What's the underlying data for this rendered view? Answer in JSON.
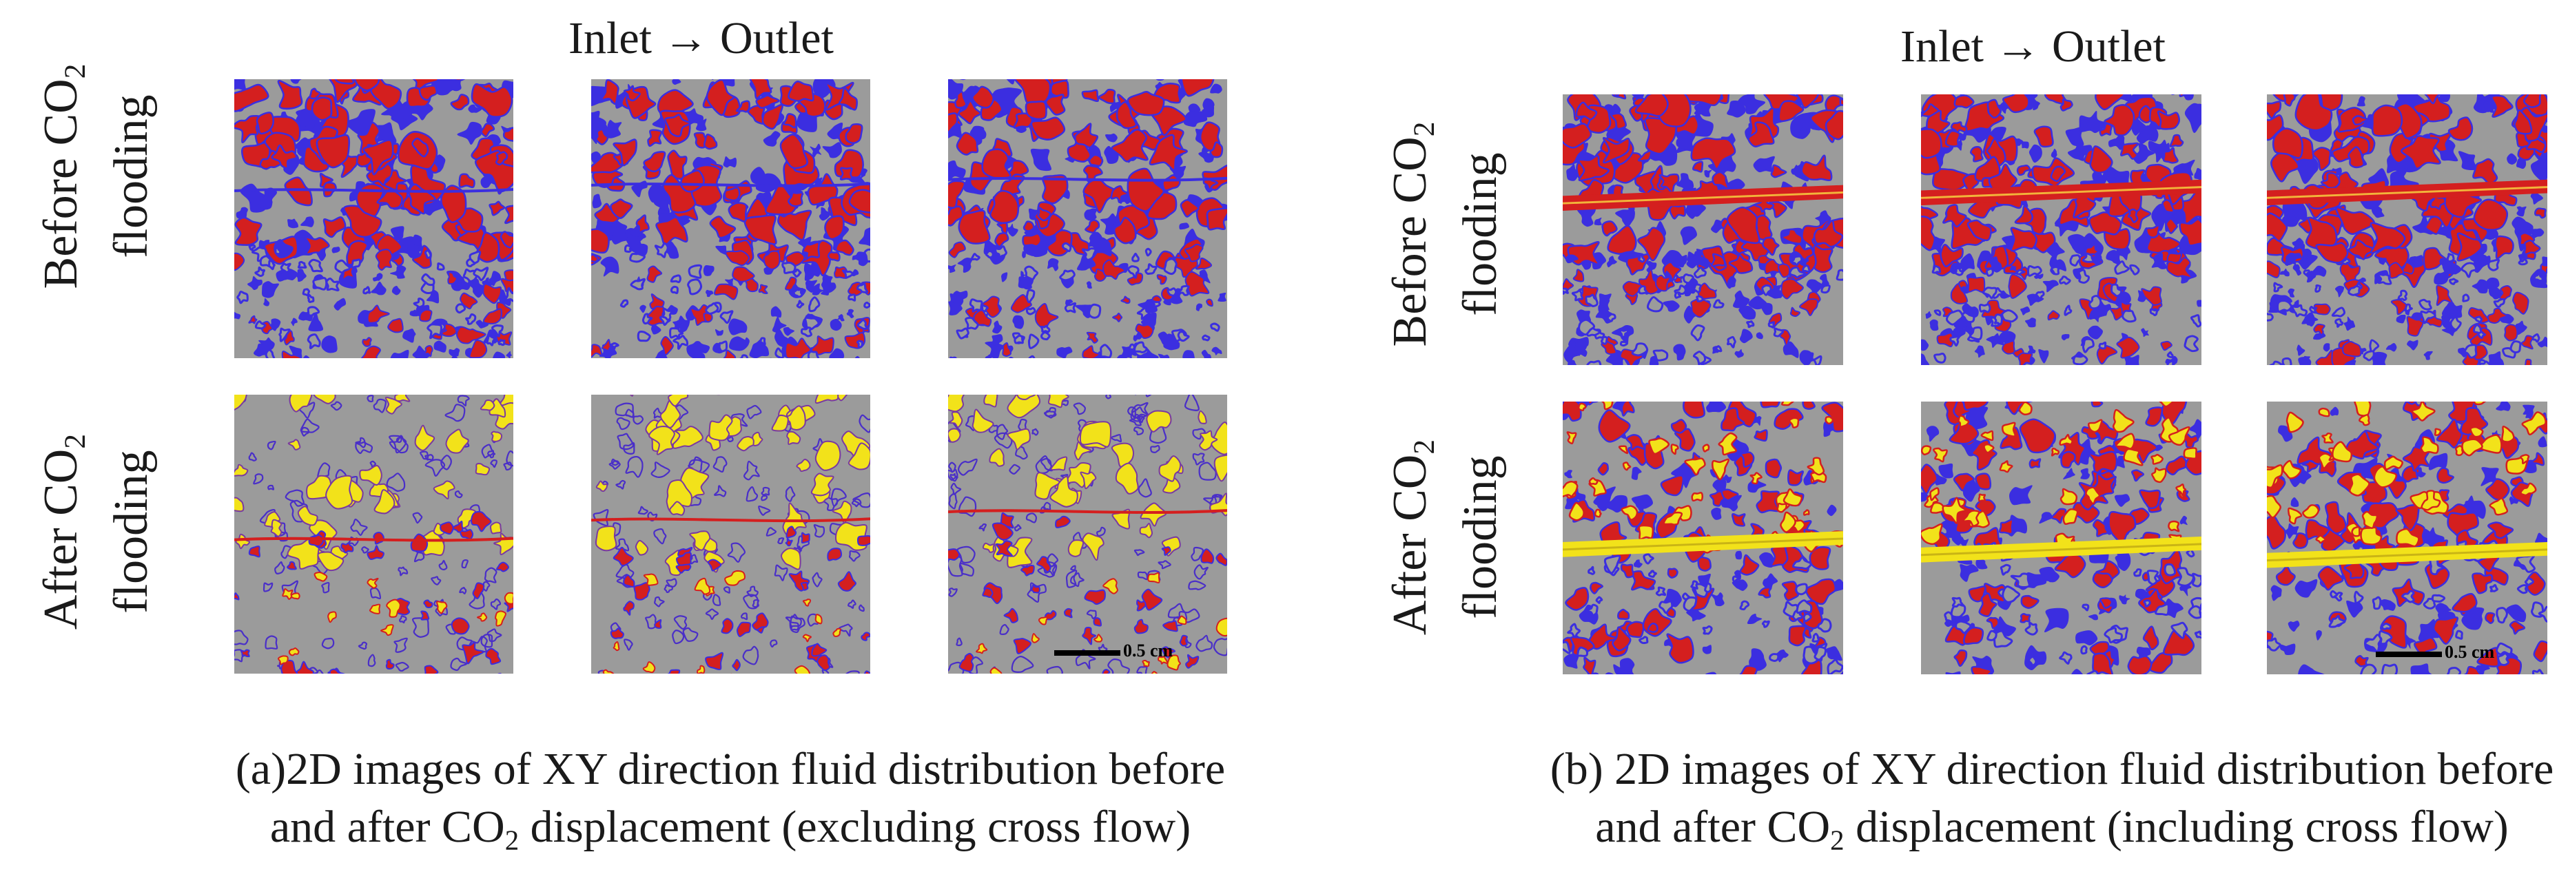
{
  "panels": [
    {
      "header": "Inlet → Outlet",
      "row_before": {
        "line1": "Before CO",
        "sub": "2",
        "line2": "flooding"
      },
      "row_after": {
        "line1": "After CO",
        "sub": "2",
        "line2": "flooding"
      },
      "scale_bar": "0.5 cm",
      "caption": {
        "line1": "(a)2D images of XY direction fluid distribution before",
        "line2_pre": "and after CO",
        "line2_sub": "2",
        "line2_post": " displacement (excluding cross flow)"
      }
    },
    {
      "header": "Inlet → Outlet",
      "row_before": {
        "line1": "Before CO",
        "sub": "2",
        "line2": "flooding"
      },
      "row_after": {
        "line1": "After CO",
        "sub": "2",
        "line2": "flooding"
      },
      "scale_bar": "0.5 cm",
      "caption": {
        "line1": "(b) 2D images of XY direction fluid distribution before",
        "line2_pre": "and after CO",
        "line2_sub": "2",
        "line2_post": " displacement (including cross flow)"
      }
    }
  ],
  "colors": {
    "rock": "#9b9b9b",
    "oil": "#d41f1f",
    "water": "#3b2ee0",
    "co2": "#f2e21a"
  }
}
